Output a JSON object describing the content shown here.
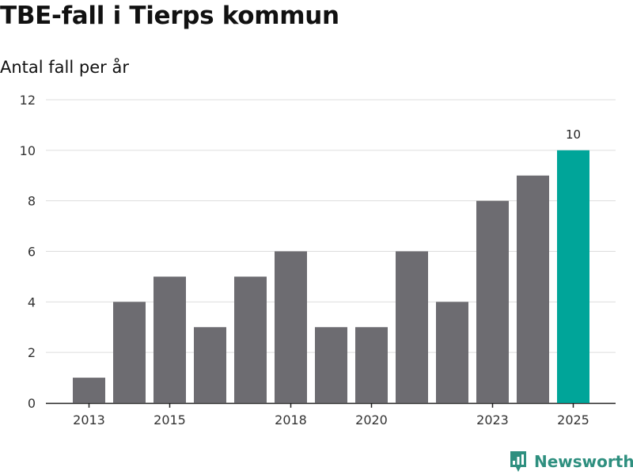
{
  "header": {
    "title": "TBE-fall i Tierps kommun",
    "subtitle": "Antal fall per år"
  },
  "brand": {
    "name": "Newsworthy",
    "icon": "newsworthy-logo-icon"
  },
  "colors": {
    "bar": "#6d6c71",
    "highlight": "#00a599",
    "grid": "#dddddd",
    "axis": "#222222",
    "brand": "#2e8f7f"
  },
  "chart_data": {
    "type": "bar",
    "title": "TBE-fall i Tierps kommun",
    "subtitle": "Antal fall per år",
    "xlabel": "",
    "ylabel": "",
    "categories": [
      "2013",
      "2014",
      "2015",
      "2016",
      "2017",
      "2018",
      "2019",
      "2020",
      "2021",
      "2022",
      "2023",
      "2024",
      "2025"
    ],
    "values": [
      1,
      4,
      5,
      3,
      5,
      6,
      3,
      3,
      6,
      4,
      8,
      9,
      10
    ],
    "x_tick_labels": [
      "2013",
      "2015",
      "2018",
      "2020",
      "2023",
      "2025"
    ],
    "y_ticks": [
      "0",
      "2",
      "4",
      "6",
      "8",
      "10",
      "12"
    ],
    "ylim": [
      0,
      12
    ],
    "grid": true,
    "highlight": {
      "category": "2025",
      "label": "10"
    }
  }
}
